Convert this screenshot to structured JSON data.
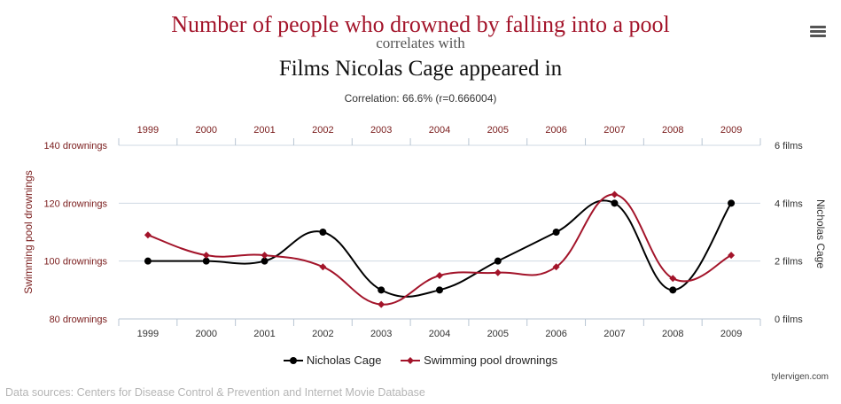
{
  "title": {
    "main": "Number of people who drowned by falling into a pool",
    "connector": "correlates with",
    "sub": "Films Nicolas Cage appeared in"
  },
  "correlation": "Correlation: 66.6% (r=0.666004)",
  "menu_icon": "hamburger-menu-icon",
  "colors": {
    "drowning": "#a3142a",
    "cage": "#000000",
    "axis_left": "#7a1c1c",
    "grid": "#cfd9e3",
    "axis_line": "#b8c5d3"
  },
  "chart_data": {
    "type": "line",
    "x": [
      "1999",
      "2000",
      "2001",
      "2002",
      "2003",
      "2004",
      "2005",
      "2006",
      "2007",
      "2008",
      "2009"
    ],
    "series": [
      {
        "name": "Nicholas Cage",
        "axis": "right",
        "values": [
          2,
          2,
          2,
          3,
          1,
          1,
          2,
          3,
          4,
          1,
          4
        ]
      },
      {
        "name": "Swimming pool drownings",
        "axis": "left",
        "values": [
          109,
          102,
          102,
          98,
          85,
          95,
          96,
          98,
          123,
          94,
          102
        ]
      }
    ],
    "left_axis": {
      "label": "Swimming pool drownings",
      "range": [
        80,
        140
      ],
      "ticks": [
        80,
        100,
        120,
        140
      ],
      "tick_labels": [
        "80 drownings",
        "100 drownings",
        "120 drownings",
        "140 drownings"
      ]
    },
    "right_axis": {
      "label": "Nicholas Cage",
      "range": [
        0,
        6
      ],
      "ticks": [
        0,
        2,
        4,
        6
      ],
      "tick_labels": [
        "0 films",
        "2 films",
        "4 films",
        "6 films"
      ]
    },
    "legend": [
      "Nicholas Cage",
      "Swimming pool drownings"
    ],
    "legend_position": "bottom",
    "grid": true
  },
  "credit": "tylervigen.com",
  "sources": "Data sources: Centers for Disease Control & Prevention and Internet Movie Database"
}
